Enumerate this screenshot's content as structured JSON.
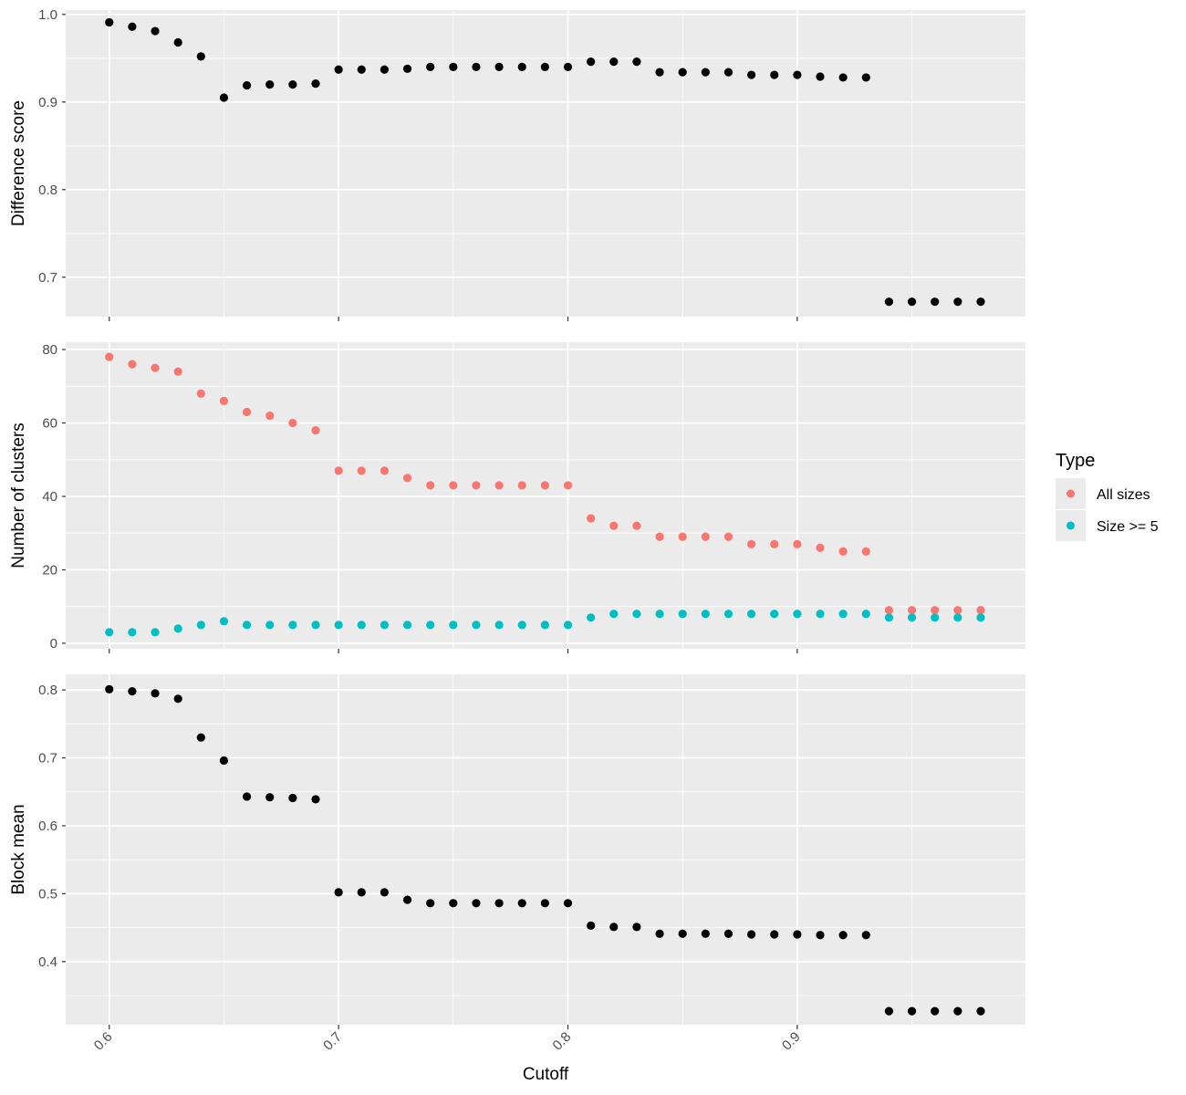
{
  "chart_data": [
    {
      "type": "scatter",
      "ylabel": "Difference score",
      "xlim": [
        0.581,
        0.9995
      ],
      "ylim": [
        0.655,
        1.005
      ],
      "y_ticks": [
        0.7,
        0.8,
        0.9,
        1.0
      ],
      "y_tick_labels": [
        "0.7",
        "0.8",
        "0.9",
        "1.0"
      ],
      "grid": true,
      "series": [
        {
          "color": "#000000",
          "x": [
            0.6,
            0.61,
            0.62,
            0.63,
            0.64,
            0.65,
            0.66,
            0.67,
            0.68,
            0.69,
            0.7,
            0.71,
            0.72,
            0.73,
            0.74,
            0.75,
            0.76,
            0.77,
            0.78,
            0.79,
            0.8,
            0.81,
            0.82,
            0.83,
            0.84,
            0.85,
            0.86,
            0.87,
            0.88,
            0.89,
            0.9,
            0.91,
            0.92,
            0.93,
            0.94,
            0.95,
            0.96,
            0.97,
            0.98
          ],
          "y": [
            0.991,
            0.986,
            0.981,
            0.968,
            0.952,
            0.905,
            0.919,
            0.92,
            0.92,
            0.921,
            0.937,
            0.937,
            0.937,
            0.938,
            0.94,
            0.94,
            0.94,
            0.94,
            0.94,
            0.94,
            0.94,
            0.946,
            0.946,
            0.946,
            0.934,
            0.934,
            0.934,
            0.934,
            0.931,
            0.931,
            0.931,
            0.929,
            0.928,
            0.928,
            0.672,
            0.672,
            0.672,
            0.672,
            0.672
          ]
        }
      ]
    },
    {
      "type": "scatter",
      "ylabel": "Number of clusters",
      "xlim": [
        0.581,
        0.9995
      ],
      "ylim": [
        -1.5,
        82
      ],
      "y_ticks": [
        0,
        20,
        40,
        60,
        80
      ],
      "y_tick_labels": [
        "0",
        "20",
        "40",
        "60",
        "80"
      ],
      "grid": true,
      "legend": {
        "title": "Type",
        "position": "right",
        "entries": [
          "All sizes",
          "Size >= 5"
        ]
      },
      "series": [
        {
          "name": "All sizes",
          "color": "#F8766D",
          "x": [
            0.6,
            0.61,
            0.62,
            0.63,
            0.64,
            0.65,
            0.66,
            0.67,
            0.68,
            0.69,
            0.7,
            0.71,
            0.72,
            0.73,
            0.74,
            0.75,
            0.76,
            0.77,
            0.78,
            0.79,
            0.8,
            0.81,
            0.82,
            0.83,
            0.84,
            0.85,
            0.86,
            0.87,
            0.88,
            0.89,
            0.9,
            0.91,
            0.92,
            0.93,
            0.94,
            0.95,
            0.96,
            0.97,
            0.98
          ],
          "y": [
            78,
            76,
            75,
            74,
            68,
            66,
            63,
            62,
            60,
            58,
            47,
            47,
            47,
            45,
            43,
            43,
            43,
            43,
            43,
            43,
            43,
            34,
            32,
            32,
            29,
            29,
            29,
            29,
            27,
            27,
            27,
            26,
            25,
            25,
            9,
            9,
            9,
            9,
            9
          ]
        },
        {
          "name": "Size >= 5",
          "color": "#00BFC4",
          "x": [
            0.6,
            0.61,
            0.62,
            0.63,
            0.64,
            0.65,
            0.66,
            0.67,
            0.68,
            0.69,
            0.7,
            0.71,
            0.72,
            0.73,
            0.74,
            0.75,
            0.76,
            0.77,
            0.78,
            0.79,
            0.8,
            0.81,
            0.82,
            0.83,
            0.84,
            0.85,
            0.86,
            0.87,
            0.88,
            0.89,
            0.9,
            0.91,
            0.92,
            0.93,
            0.94,
            0.95,
            0.96,
            0.97,
            0.98
          ],
          "y": [
            3,
            3,
            3,
            4,
            5,
            6,
            5,
            5,
            5,
            5,
            5,
            5,
            5,
            5,
            5,
            5,
            5,
            5,
            5,
            5,
            5,
            7,
            8,
            8,
            8,
            8,
            8,
            8,
            8,
            8,
            8,
            8,
            8,
            8,
            7,
            7,
            7,
            7,
            7
          ]
        }
      ]
    },
    {
      "type": "scatter",
      "ylabel": "Block mean",
      "xlabel": "Cutoff",
      "xlim": [
        0.581,
        0.9995
      ],
      "ylim": [
        0.307,
        0.823
      ],
      "y_ticks": [
        0.4,
        0.5,
        0.6,
        0.7,
        0.8
      ],
      "y_tick_labels": [
        "0.4",
        "0.5",
        "0.6",
        "0.7",
        "0.8"
      ],
      "x_ticks": [
        0.6,
        0.7,
        0.8,
        0.9
      ],
      "x_tick_labels": [
        "0.6",
        "0.7",
        "0.8",
        "0.9"
      ],
      "grid": true,
      "series": [
        {
          "color": "#000000",
          "x": [
            0.6,
            0.61,
            0.62,
            0.63,
            0.64,
            0.65,
            0.66,
            0.67,
            0.68,
            0.69,
            0.7,
            0.71,
            0.72,
            0.73,
            0.74,
            0.75,
            0.76,
            0.77,
            0.78,
            0.79,
            0.8,
            0.81,
            0.82,
            0.83,
            0.84,
            0.85,
            0.86,
            0.87,
            0.88,
            0.89,
            0.9,
            0.91,
            0.92,
            0.93,
            0.94,
            0.95,
            0.96,
            0.97,
            0.98
          ],
          "y": [
            0.801,
            0.798,
            0.795,
            0.787,
            0.73,
            0.696,
            0.643,
            0.642,
            0.641,
            0.639,
            0.502,
            0.502,
            0.502,
            0.491,
            0.486,
            0.486,
            0.486,
            0.486,
            0.486,
            0.486,
            0.486,
            0.453,
            0.451,
            0.451,
            0.441,
            0.441,
            0.441,
            0.441,
            0.44,
            0.44,
            0.44,
            0.439,
            0.439,
            0.439,
            0.327,
            0.327,
            0.327,
            0.327,
            0.327
          ]
        }
      ]
    }
  ]
}
